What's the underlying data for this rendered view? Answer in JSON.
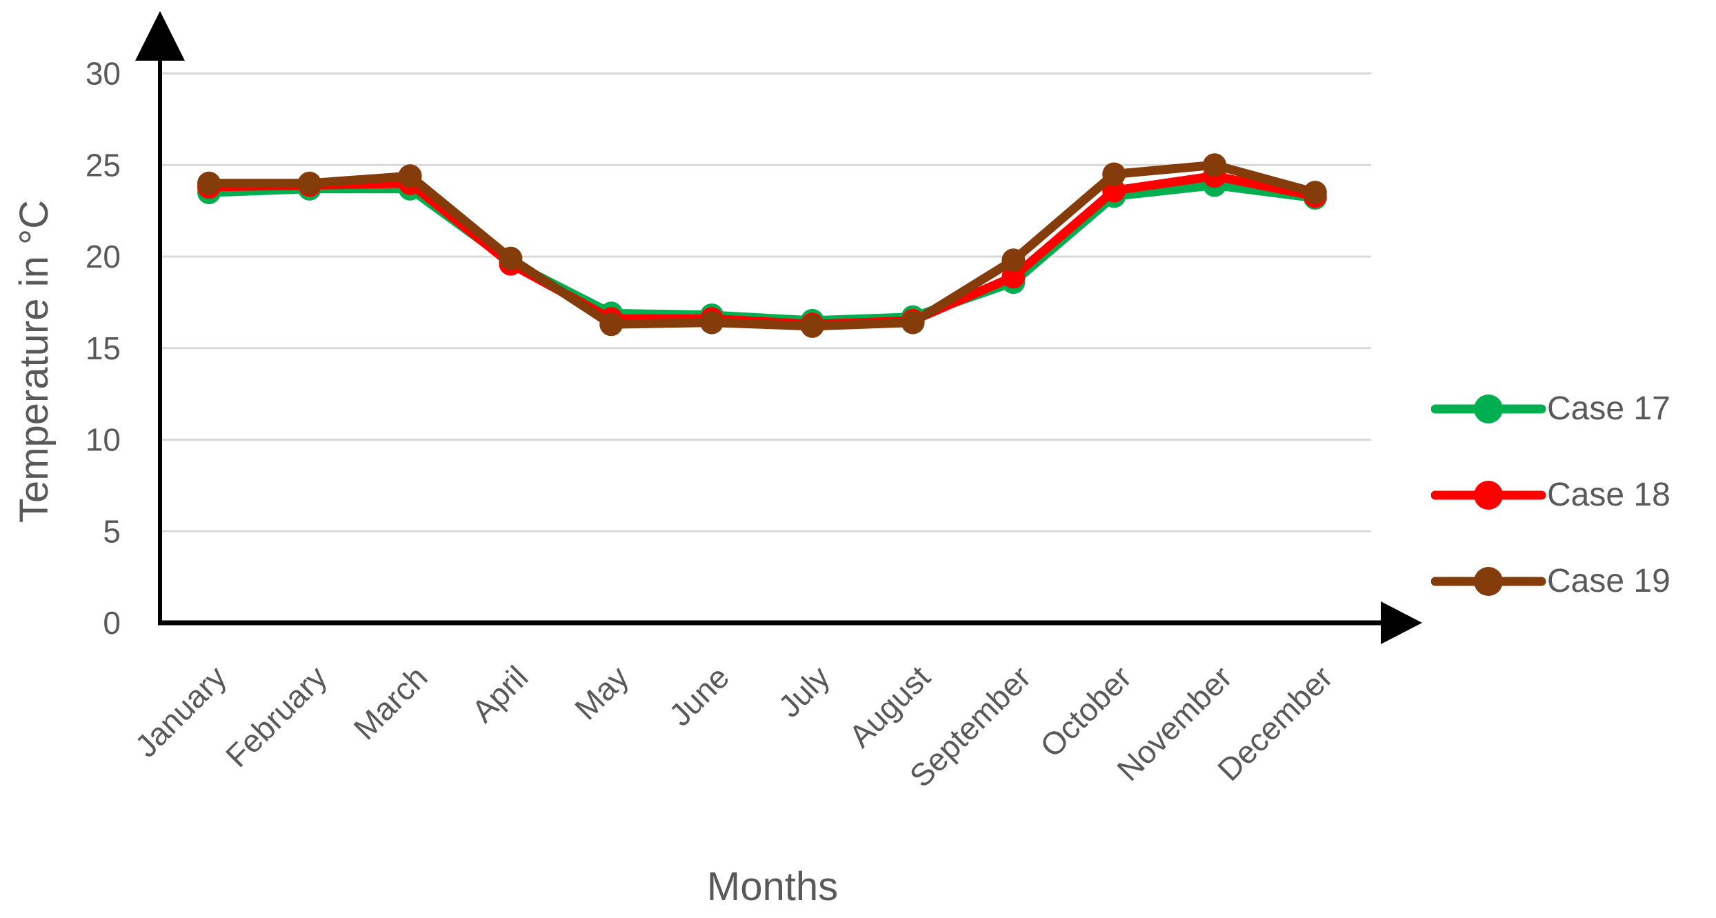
{
  "figure": {
    "background": "#FFFFFF"
  },
  "chart_data": {
    "type": "line",
    "title": "",
    "xlabel": "Months",
    "ylabel": "Temperature in °C",
    "categories": [
      "January",
      "February",
      "March",
      "April",
      "May",
      "June",
      "July",
      "August",
      "September",
      "October",
      "November",
      "December"
    ],
    "series": [
      {
        "name": "Case 17",
        "color": "#00B050",
        "values": [
          23.5,
          23.7,
          23.7,
          19.7,
          16.9,
          16.8,
          16.5,
          16.7,
          18.6,
          23.3,
          23.9,
          23.2
        ]
      },
      {
        "name": "Case 18",
        "color": "#FF0000",
        "values": [
          23.8,
          23.9,
          24.0,
          19.6,
          16.6,
          16.6,
          16.3,
          16.5,
          18.9,
          23.6,
          24.4,
          23.3
        ]
      },
      {
        "name": "Case 19",
        "color": "#843C0B",
        "values": [
          24.0,
          24.0,
          24.4,
          19.9,
          16.3,
          16.4,
          16.2,
          16.4,
          19.8,
          24.5,
          25.0,
          23.5
        ]
      }
    ],
    "yticks": [
      0,
      5,
      10,
      15,
      20,
      25,
      30
    ],
    "ylim": [
      0,
      32
    ],
    "grid": true,
    "legend_position": "right",
    "colors": {
      "axis_line": "#000000",
      "grid_line": "#D9D9D9",
      "tick_text": "#595959"
    }
  }
}
